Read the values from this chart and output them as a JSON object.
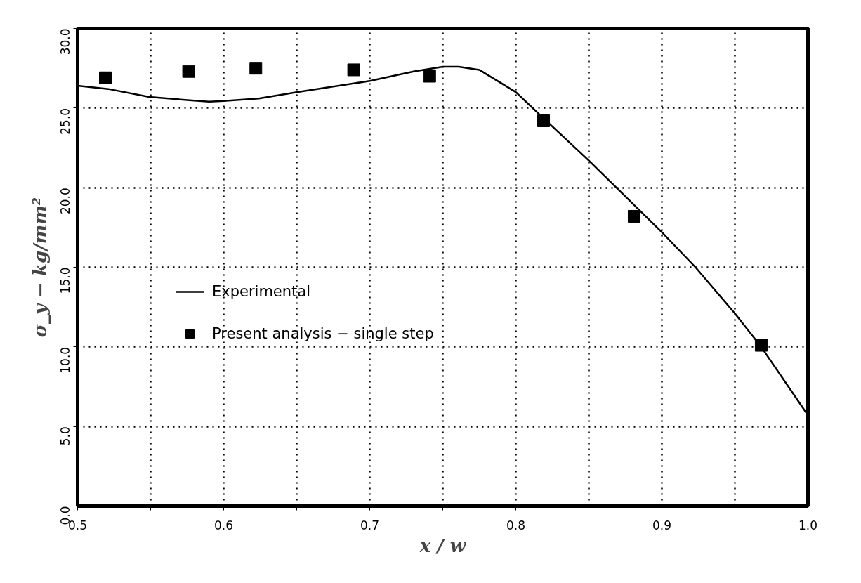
{
  "chart_data": {
    "type": "line",
    "xlabel": "x / w",
    "ylabel": "σ_y − kg/mm²",
    "xlim": [
      0.5,
      1.0
    ],
    "ylim": [
      0,
      30
    ],
    "xticks": [
      {
        "value": 0.5,
        "label": "0.5"
      },
      {
        "value": 0.55,
        "label": null
      },
      {
        "value": 0.6,
        "label": "0.6"
      },
      {
        "value": 0.65,
        "label": null
      },
      {
        "value": 0.7,
        "label": "0.7"
      },
      {
        "value": 0.75,
        "label": null
      },
      {
        "value": 0.8,
        "label": "0.8"
      },
      {
        "value": 0.85,
        "label": null
      },
      {
        "value": 0.9,
        "label": "0.9"
      },
      {
        "value": 0.95,
        "label": null
      },
      {
        "value": 1.0,
        "label": "1.0"
      }
    ],
    "yticks": [
      {
        "value": 0,
        "label": "0.0"
      },
      {
        "value": 5,
        "label": "5.0"
      },
      {
        "value": 10,
        "label": "10.0"
      },
      {
        "value": 15,
        "label": "15.0"
      },
      {
        "value": 20,
        "label": "20.0"
      },
      {
        "value": 25,
        "label": "25.0"
      },
      {
        "value": 30,
        "label": "30.0"
      }
    ],
    "grid": true,
    "legend": "center",
    "line_style": "solid",
    "series": [
      {
        "name": "Experimental",
        "color": "#000000",
        "x": [
          0.5,
          0.521,
          0.549,
          0.575,
          0.59,
          0.6,
          0.624,
          0.65,
          0.7,
          0.73,
          0.75,
          0.761,
          0.775,
          0.8,
          0.815,
          0.85,
          0.9,
          0.923,
          0.95,
          0.968,
          1.0
        ],
        "values": [
          26.4,
          26.2,
          25.7,
          25.5,
          25.4,
          25.45,
          25.6,
          26.0,
          26.7,
          27.3,
          27.6,
          27.6,
          27.4,
          26.0,
          24.7,
          21.7,
          17.2,
          15.0,
          12.1,
          10.0,
          5.7
        ]
      },
      {
        "name": "Present analysis − single step",
        "type": "scatter",
        "color": "#000000",
        "marker": "square",
        "x": [
          0.519,
          0.576,
          0.622,
          0.689,
          0.741,
          0.819,
          0.881,
          0.968
        ],
        "values": [
          26.9,
          27.3,
          27.5,
          27.4,
          27.0,
          24.2,
          18.2,
          10.1
        ]
      }
    ]
  }
}
